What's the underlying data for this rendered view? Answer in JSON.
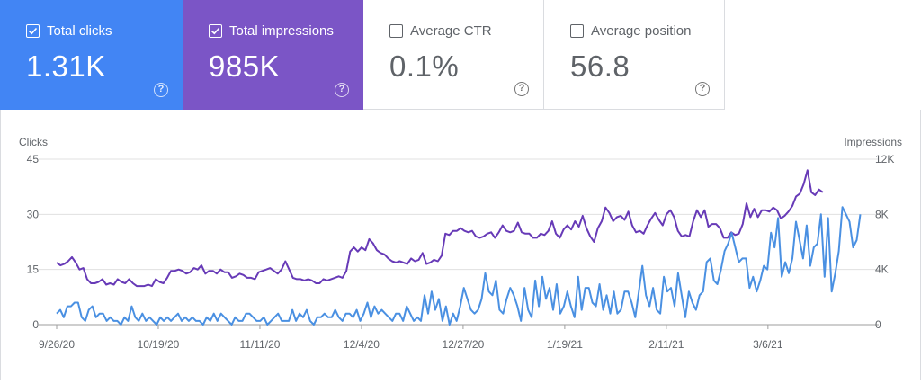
{
  "metrics": {
    "clicks": {
      "label": "Total clicks",
      "value": "1.31K",
      "checked": true,
      "color": "#4285f4"
    },
    "impressions": {
      "label": "Total impressions",
      "value": "985K",
      "checked": true,
      "color": "#7b55c6"
    },
    "ctr": {
      "label": "Average CTR",
      "value": "0.1%",
      "checked": false
    },
    "position": {
      "label": "Average position",
      "value": "56.8",
      "checked": false
    }
  },
  "help_glyph": "?",
  "chart_data": {
    "type": "line",
    "left_axis_label": "Clicks",
    "right_axis_label": "Impressions",
    "left_ticks": [
      "0",
      "15",
      "30",
      "45"
    ],
    "right_ticks": [
      "0",
      "4K",
      "8K",
      "12K"
    ],
    "left_range": [
      0,
      45
    ],
    "right_range": [
      0,
      12000
    ],
    "grid": true,
    "x_ticks": [
      "9/26/20",
      "10/19/20",
      "11/11/20",
      "12/4/20",
      "12/27/20",
      "1/19/21",
      "2/11/21",
      "3/6/21"
    ],
    "x_tick_days": [
      0,
      23,
      46,
      69,
      92,
      115,
      138,
      161
    ],
    "x_day_range": [
      0,
      182
    ],
    "series": [
      {
        "name": "Total impressions",
        "axis": "right",
        "color": "#673ab7",
        "values": [
          4500,
          4300,
          4400,
          4600,
          4900,
          4500,
          4000,
          4100,
          3300,
          3000,
          3000,
          3100,
          3300,
          2900,
          3000,
          2900,
          3300,
          3100,
          3000,
          3300,
          3000,
          2800,
          2800,
          2800,
          2900,
          2800,
          3300,
          3100,
          3000,
          3400,
          3900,
          3900,
          4000,
          3900,
          3700,
          3800,
          4100,
          4000,
          4300,
          3700,
          3900,
          3900,
          3700,
          4000,
          3800,
          3800,
          3400,
          3500,
          3700,
          3600,
          3400,
          3400,
          3300,
          3800,
          3900,
          4000,
          4100,
          3900,
          3700,
          4000,
          4600,
          4000,
          3400,
          3300,
          3300,
          3200,
          3300,
          3200,
          3000,
          3000,
          3300,
          3200,
          3300,
          3400,
          3500,
          3400,
          3900,
          5300,
          5600,
          5300,
          5600,
          5400,
          6200,
          5900,
          5400,
          5200,
          5100,
          4800,
          4600,
          4500,
          4600,
          4500,
          4400,
          4800,
          4600,
          4700,
          5200,
          4400,
          4500,
          4700,
          4600,
          5000,
          6600,
          6500,
          6800,
          6800,
          7000,
          6800,
          6700,
          6800,
          6400,
          6300,
          6400,
          6600,
          6700,
          6300,
          6700,
          7200,
          6800,
          6700,
          6800,
          7400,
          6700,
          6600,
          6600,
          6300,
          6300,
          6600,
          6500,
          6800,
          7500,
          6600,
          6300,
          6900,
          7200,
          6900,
          7500,
          7100,
          7900,
          7000,
          6400,
          6000,
          7000,
          7500,
          8500,
          8100,
          7500,
          7800,
          7900,
          7600,
          8200,
          7200,
          6700,
          6800,
          6600,
          7200,
          7700,
          8100,
          7600,
          7200,
          8000,
          8300,
          7800,
          6800,
          6400,
          6500,
          6400,
          7500,
          8300,
          7800,
          8300,
          7100,
          7300,
          7300,
          7000,
          6300,
          6300,
          6700,
          6500,
          6600,
          7300,
          8800,
          7800,
          8400,
          7800,
          8300,
          8300,
          8200,
          8500,
          8300,
          7700,
          7900,
          8200,
          8600,
          9300,
          9500,
          10200,
          11200,
          9600,
          9400,
          9800,
          9600
        ],
        "days_step": 0.8627
      },
      {
        "name": "Total clicks",
        "axis": "left",
        "color": "#4a90e2",
        "values": [
          3,
          4,
          2,
          5,
          5,
          6,
          6,
          2,
          1,
          4,
          5,
          2,
          3,
          3,
          1,
          2,
          1,
          1,
          0,
          2,
          1,
          5,
          2,
          1,
          3,
          1,
          2,
          1,
          0,
          2,
          1,
          2,
          1,
          2,
          3,
          1,
          2,
          1,
          2,
          1,
          1,
          0,
          2,
          1,
          3,
          1,
          3,
          2,
          1,
          0,
          2,
          1,
          1,
          3,
          3,
          2,
          1,
          1,
          2,
          0,
          1,
          2,
          3,
          1,
          1,
          1,
          4,
          1,
          3,
          2,
          4,
          1,
          0,
          2,
          2,
          3,
          2,
          2,
          4,
          2,
          1,
          3,
          3,
          2,
          4,
          1,
          3,
          6,
          2,
          5,
          3,
          4,
          3,
          2,
          1,
          3,
          3,
          1,
          5,
          3,
          1,
          2,
          1,
          8,
          3,
          9,
          4,
          7,
          1,
          5,
          0,
          3,
          1,
          5,
          10,
          7,
          4,
          3,
          4,
          7,
          14,
          9,
          8,
          12,
          4,
          3,
          7,
          10,
          8,
          5,
          1,
          10,
          4,
          2,
          12,
          5,
          13,
          7,
          10,
          4,
          11,
          3,
          5,
          9,
          5,
          2,
          13,
          4,
          10,
          10,
          6,
          5,
          11,
          4,
          8,
          3,
          9,
          3,
          4,
          9,
          9,
          6,
          2,
          9,
          16,
          8,
          5,
          10,
          4,
          3,
          13,
          9,
          10,
          5,
          14,
          8,
          2,
          9,
          6,
          4,
          8,
          9,
          17,
          18,
          12,
          11,
          15,
          20,
          22,
          25,
          21,
          17,
          18,
          18,
          10,
          13,
          9,
          12,
          16,
          15,
          25,
          21,
          29,
          13,
          17,
          14,
          18,
          28,
          23,
          18,
          27,
          16,
          21,
          22,
          30,
          13,
          29,
          9,
          14,
          20,
          32,
          30,
          28,
          21,
          23,
          30
        ],
        "days_step": 0.8084
      }
    ]
  }
}
